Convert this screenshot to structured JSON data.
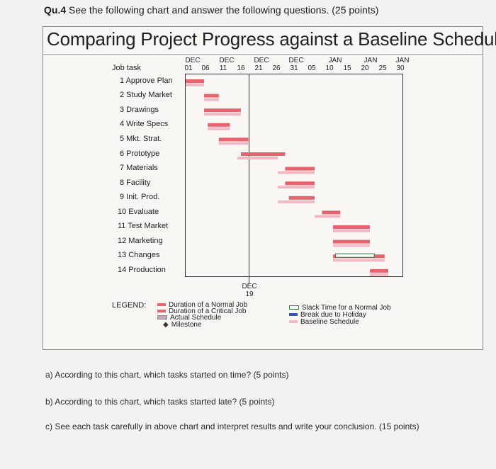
{
  "question": {
    "number": "Qu.4",
    "text": "See the following chart and answer the following questions. (25 points)"
  },
  "chart": {
    "title": "Comparing Project Progress against a Baseline Schedule",
    "column_header": "Job task",
    "months": [
      "DEC",
      "DEC",
      "DEC",
      "DEC",
      "JAN",
      "JAN",
      "JAN"
    ],
    "days": [
      "01",
      "06",
      "11",
      "16",
      "21",
      "26",
      "31",
      "05",
      "10",
      "15",
      "20",
      "25",
      "30"
    ],
    "tasks": [
      "1 Approve Plan",
      "2 Study Market",
      "3 Drawings",
      "4 Write Specs",
      "5 Mkt. Strat.",
      "6 Prototype",
      "7 Materials",
      "8 Facility",
      "9 Init. Prod.",
      "10 Evaluate",
      "11 Test Market",
      "12 Marketing",
      "13 Changes",
      "14 Production"
    ],
    "marker": {
      "month": "DEC",
      "day": "19"
    }
  },
  "legend": {
    "heading": "LEGEND:",
    "items": [
      {
        "label": "Duration of a Normal Job",
        "color": "#e8636e"
      },
      {
        "label": "Duration of a Critical Job",
        "color": "#e8636e"
      },
      {
        "label": "Actual Schedule",
        "color": "#c9a3b8"
      },
      {
        "label": "Milestone",
        "color": "#e8636e"
      },
      {
        "label": "Slack Time for a Normal Job",
        "color": "#2f7a3b"
      },
      {
        "label": "Break due to Holiday",
        "color": "#3a53b8"
      },
      {
        "label": "Baseline Schedule",
        "color": "#f2b9c5"
      }
    ]
  },
  "questions": [
    "a) According to this chart, which tasks started on time? (5 points)",
    "b) According to this chart, which tasks started late? (5 points)",
    "c) See each task carefully in above chart and interpret results and write your conclusion. (15 points)"
  ],
  "chart_data": {
    "type": "gantt",
    "title": "Comparing Project Progress against a Baseline Schedule",
    "x_unit": "days since DEC 01",
    "status_line_day": 18,
    "tasks": [
      {
        "name": "1 Approve Plan",
        "baseline": [
          0,
          5
        ],
        "actual": [
          0,
          5
        ]
      },
      {
        "name": "2 Study Market",
        "baseline": [
          5,
          9
        ],
        "actual": [
          5,
          9
        ]
      },
      {
        "name": "3 Drawings",
        "baseline": [
          5,
          15
        ],
        "actual": [
          5,
          15
        ]
      },
      {
        "name": "4 Write Specs",
        "baseline": [
          6,
          12
        ],
        "actual": [
          6,
          12
        ]
      },
      {
        "name": "5 Mkt. Strat.",
        "baseline": [
          9,
          17
        ],
        "actual": [
          9,
          17
        ]
      },
      {
        "name": "6 Prototype",
        "baseline": [
          14,
          25
        ],
        "actual": [
          15,
          27
        ]
      },
      {
        "name": "7 Materials",
        "baseline": [
          25,
          35
        ],
        "actual": [
          27,
          35
        ]
      },
      {
        "name": "8 Facility",
        "baseline": [
          25,
          35
        ],
        "actual": [
          27,
          35
        ]
      },
      {
        "name": "9 Init. Prod.",
        "baseline": [
          25,
          35
        ],
        "actual": [
          28,
          35
        ]
      },
      {
        "name": "10 Evaluate",
        "baseline": [
          35,
          42
        ],
        "actual": [
          37,
          42
        ]
      },
      {
        "name": "11 Test Market",
        "baseline": [
          40,
          50
        ],
        "actual": [
          40,
          50
        ]
      },
      {
        "name": "12 Marketing",
        "baseline": [
          40,
          50
        ],
        "actual": [
          40,
          50
        ]
      },
      {
        "name": "13 Changes",
        "baseline": [
          40,
          54
        ],
        "actual": [
          40,
          54
        ],
        "slack": true
      },
      {
        "name": "14 Production",
        "baseline": [
          50,
          55
        ],
        "actual": [
          50,
          55
        ]
      }
    ]
  }
}
